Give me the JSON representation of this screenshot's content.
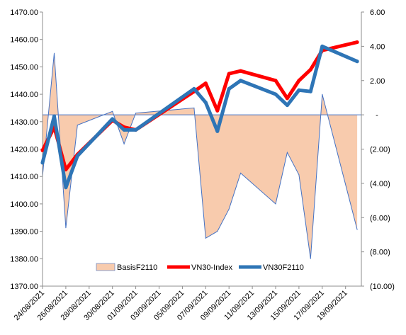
{
  "chart_data": {
    "type": "line",
    "title": "",
    "x": [
      "24/08/2021",
      "25/08/2021",
      "26/08/2021",
      "27/08/2021",
      "28/08/2021",
      "29/08/2021",
      "30/08/2021",
      "31/08/2021",
      "01/09/2021",
      "02/09/2021",
      "03/09/2021",
      "04/09/2021",
      "05/09/2021",
      "06/09/2021",
      "07/09/2021",
      "08/09/2021",
      "09/09/2021",
      "10/09/2021",
      "11/09/2021",
      "12/09/2021",
      "13/09/2021",
      "14/09/2021",
      "15/09/2021",
      "16/09/2021",
      "17/09/2021",
      "18/09/2021",
      "19/09/2021",
      "20/09/2021"
    ],
    "x_tick_labels": [
      "24/08/2021",
      "26/08/2021",
      "28/08/2021",
      "30/08/2021",
      "01/09/2021",
      "03/09/2021",
      "05/09/2021",
      "07/09/2021",
      "09/09/2021",
      "11/09/2021",
      "13/09/2021",
      "15/09/2021",
      "17/09/2021",
      "19/09/2021"
    ],
    "y_left": {
      "ylim": [
        1370,
        1470
      ],
      "ticks": [
        "1370.00",
        "1380.00",
        "1390.00",
        "1400.00",
        "1410.00",
        "1420.00",
        "1430.00",
        "1440.00",
        "1450.00",
        "1460.00",
        "1470.00"
      ]
    },
    "y_right": {
      "ylim": [
        -10,
        6
      ],
      "ticks": [
        "(10.00)",
        "(8.00)",
        "(6.00)",
        "(4.00)",
        "(2.00)",
        "-",
        "2.00",
        "4.00",
        "6.00"
      ]
    },
    "series": [
      {
        "name": "BasisF2110",
        "kind": "area",
        "axis": "right",
        "color": "#F8CBAD",
        "edge_color": "#4472C4",
        "points": [
          {
            "x": "24/08/2021",
            "y": -3.6
          },
          {
            "x": "25/08/2021",
            "y": 3.6
          },
          {
            "x": "26/08/2021",
            "y": -6.6
          },
          {
            "x": "27/08/2021",
            "y": -0.6
          },
          {
            "x": "30/08/2021",
            "y": 0.2
          },
          {
            "x": "31/08/2021",
            "y": -1.7
          },
          {
            "x": "01/09/2021",
            "y": 0.1
          },
          {
            "x": "06/09/2021",
            "y": 0.4
          },
          {
            "x": "07/09/2021",
            "y": -7.2
          },
          {
            "x": "08/09/2021",
            "y": -6.8
          },
          {
            "x": "09/09/2021",
            "y": -5.5
          },
          {
            "x": "10/09/2021",
            "y": -3.4
          },
          {
            "x": "13/09/2021",
            "y": -5.2
          },
          {
            "x": "14/09/2021",
            "y": -2.2
          },
          {
            "x": "15/09/2021",
            "y": -3.5
          },
          {
            "x": "16/09/2021",
            "y": -8.4
          },
          {
            "x": "17/09/2021",
            "y": 1.2
          },
          {
            "x": "20/09/2021",
            "y": -6.7
          }
        ]
      },
      {
        "name": "VN30-Index",
        "kind": "line",
        "axis": "left",
        "color": "#FF0000",
        "points": [
          {
            "x": "24/08/2021",
            "y": 1419.5
          },
          {
            "x": "25/08/2021",
            "y": 1428.0
          },
          {
            "x": "26/08/2021",
            "y": 1412.5
          },
          {
            "x": "27/08/2021",
            "y": 1418.0
          },
          {
            "x": "30/08/2021",
            "y": 1430.5
          },
          {
            "x": "31/08/2021",
            "y": 1428.0
          },
          {
            "x": "01/09/2021",
            "y": 1427.0
          },
          {
            "x": "06/09/2021",
            "y": 1441.0
          },
          {
            "x": "07/09/2021",
            "y": 1444.0
          },
          {
            "x": "08/09/2021",
            "y": 1434.0
          },
          {
            "x": "09/09/2021",
            "y": 1447.5
          },
          {
            "x": "10/09/2021",
            "y": 1448.5
          },
          {
            "x": "13/09/2021",
            "y": 1445.0
          },
          {
            "x": "14/09/2021",
            "y": 1438.5
          },
          {
            "x": "15/09/2021",
            "y": 1445.0
          },
          {
            "x": "16/09/2021",
            "y": 1449.0
          },
          {
            "x": "17/09/2021",
            "y": 1456.0
          },
          {
            "x": "20/09/2021",
            "y": 1459.0
          }
        ]
      },
      {
        "name": "VN30F2110",
        "kind": "line",
        "axis": "left",
        "color": "#2E75B6",
        "points": [
          {
            "x": "24/08/2021",
            "y": 1415.0
          },
          {
            "x": "25/08/2021",
            "y": 1432.0
          },
          {
            "x": "26/08/2021",
            "y": 1406.0
          },
          {
            "x": "27/08/2021",
            "y": 1417.5
          },
          {
            "x": "30/08/2021",
            "y": 1431.0
          },
          {
            "x": "31/08/2021",
            "y": 1427.0
          },
          {
            "x": "01/09/2021",
            "y": 1427.0
          },
          {
            "x": "06/09/2021",
            "y": 1442.0
          },
          {
            "x": "07/09/2021",
            "y": 1437.0
          },
          {
            "x": "08/09/2021",
            "y": 1426.5
          },
          {
            "x": "09/09/2021",
            "y": 1442.0
          },
          {
            "x": "10/09/2021",
            "y": 1445.0
          },
          {
            "x": "13/09/2021",
            "y": 1440.0
          },
          {
            "x": "14/09/2021",
            "y": 1436.0
          },
          {
            "x": "15/09/2021",
            "y": 1441.5
          },
          {
            "x": "16/09/2021",
            "y": 1441.0
          },
          {
            "x": "17/09/2021",
            "y": 1457.5
          },
          {
            "x": "20/09/2021",
            "y": 1452.0
          }
        ]
      }
    ],
    "legend": {
      "position": "bottom-inside",
      "items": [
        {
          "label": "BasisF2110",
          "style": "area"
        },
        {
          "label": "VN30-Index",
          "style": "line"
        },
        {
          "label": "VN30F2110",
          "style": "line"
        }
      ]
    },
    "grid": false
  }
}
